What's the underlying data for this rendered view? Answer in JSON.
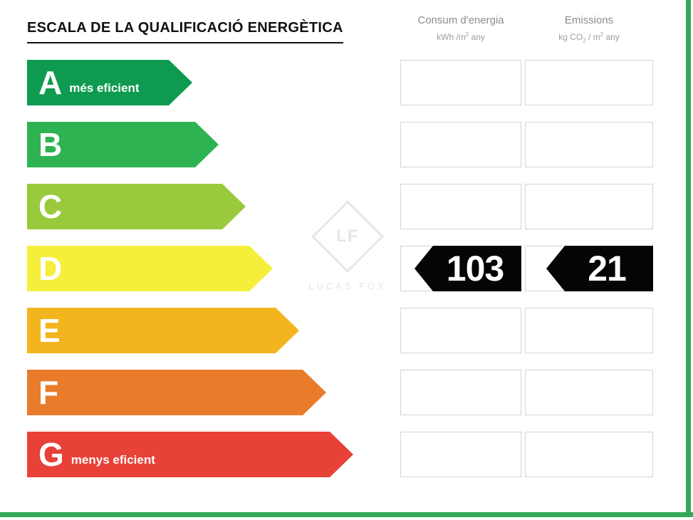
{
  "title": "ESCALA DE LA QUALIFICACIÓ ENERGÈTICA",
  "columns": {
    "consum": {
      "title": "Consum d'energia",
      "unit_main": "kWh /m",
      "unit_sup": "2",
      "unit_tail": " any"
    },
    "emissions": {
      "title": "Emissions",
      "unit_main": "kg CO",
      "unit_sub": "2",
      "unit_mid": " / m",
      "unit_sup": "2",
      "unit_tail": " any"
    }
  },
  "ratings": [
    {
      "letter": "A",
      "label": "més eficient",
      "color": "#0f9b4f"
    },
    {
      "letter": "B",
      "label": "",
      "color": "#2eb353"
    },
    {
      "letter": "C",
      "label": "",
      "color": "#99c93c"
    },
    {
      "letter": "D",
      "label": "",
      "color": "#f5ef3c"
    },
    {
      "letter": "E",
      "label": "",
      "color": "#f2b51d"
    },
    {
      "letter": "F",
      "label": "",
      "color": "#e97c2b"
    },
    {
      "letter": "G",
      "label": "menys eficient",
      "color": "#e84138"
    }
  ],
  "result": {
    "letter": "D",
    "consum_value": "103",
    "emissions_value": "21",
    "arrow_color": "#050505",
    "text_color": "#ffffff"
  },
  "watermark": {
    "monogram": "LF",
    "text": "LUCAS FOX"
  },
  "frame_color": "#33a957",
  "chart_data": {
    "type": "table",
    "title": "ESCALA DE LA QUALIFICACIÓ ENERGÈTICA",
    "scale": [
      "A",
      "B",
      "C",
      "D",
      "E",
      "F",
      "G"
    ],
    "scale_notes": {
      "A": "més eficient",
      "G": "menys eficient"
    },
    "rating": "D",
    "columns": [
      "Consum d'energia kWh/m² any",
      "Emissions kg CO₂/m² any"
    ],
    "consum_kwh_m2_any": 103,
    "emissions_kg_co2_m2_any": 21
  }
}
